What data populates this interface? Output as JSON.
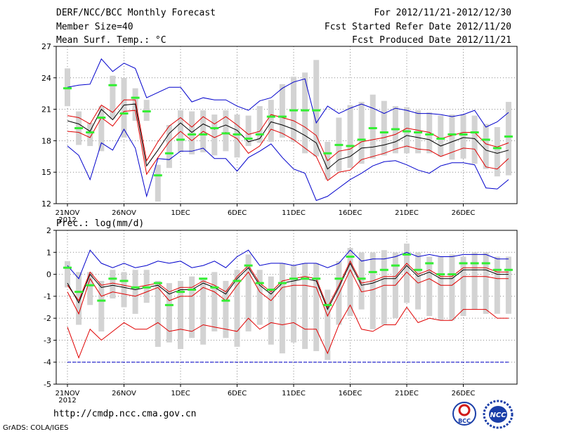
{
  "header": {
    "title": "DERF/NCC/BCC Monthly Forecast",
    "member_size": "Member Size=40",
    "variable": "Mean Surf. Temp.: °C",
    "period": "For 2012/11/21-2012/12/30",
    "start_date": "Fcst Started Refer Date 2012/11/20",
    "produced_date": "Fcst Produced Date 2012/11/21"
  },
  "footer": {
    "url": "http://cmdp.ncc.cma.gov.cn",
    "credit": "GrADS: COLA/IGES",
    "logo_left_text": "BCC",
    "logo_right_text": "NCC"
  },
  "colors": {
    "box": "#d3d3d3",
    "mean": "#000000",
    "red": "#e00000",
    "blue": "#0000cc",
    "green": "#33ee33",
    "grid": "#888888"
  },
  "chart_data": [
    {
      "type": "ensemble box plot",
      "ylabel": "Mean Surf. Temp.: °C",
      "ylim": [
        12,
        27
      ],
      "yticks": [
        12,
        15,
        18,
        21,
        24,
        27
      ],
      "xticks": [
        {
          "day": 0,
          "label": "21NOV",
          "sub": "2012"
        },
        {
          "day": 5,
          "label": "26NOV"
        },
        {
          "day": 10,
          "label": "1DEC"
        },
        {
          "day": 15,
          "label": "6DEC"
        },
        {
          "day": 20,
          "label": "11DEC"
        },
        {
          "day": 25,
          "label": "16DEC"
        },
        {
          "day": 30,
          "label": "21DEC"
        },
        {
          "day": 35,
          "label": "26DEC"
        }
      ],
      "grid": true,
      "box_low": [
        21.3,
        17.6,
        17.5,
        17.0,
        20.1,
        18.3,
        19.9,
        19.9,
        12.2,
        15.4,
        16.9,
        16.7,
        16.9,
        16.6,
        17.0,
        16.4,
        17.5,
        17.8,
        17.9,
        18.3,
        17.9,
        16.8,
        16.5,
        14.3,
        15.1,
        15.4,
        15.8,
        16.3,
        16.6,
        16.8,
        16.8,
        16.8,
        16.8,
        16.5,
        16.2,
        16.3,
        15.8,
        15.3,
        14.6,
        14.7
      ],
      "box_high": [
        24.9,
        20.8,
        19.7,
        21.3,
        24.2,
        24.0,
        23.0,
        21.9,
        15.7,
        19.5,
        20.9,
        20.8,
        20.9,
        20.5,
        20.9,
        20.5,
        20.4,
        21.3,
        21.9,
        23.4,
        24.1,
        24.5,
        25.7,
        17.9,
        20.2,
        21.4,
        21.7,
        22.4,
        21.8,
        21.3,
        21.2,
        20.9,
        20.7,
        20.4,
        20.5,
        20.5,
        20.4,
        19.6,
        19.3,
        21.7
      ],
      "mean": [
        19.9,
        19.6,
        18.9,
        21.0,
        20.0,
        21.4,
        21.5,
        15.6,
        17.1,
        18.7,
        19.7,
        18.8,
        19.6,
        19.1,
        19.5,
        19.0,
        17.9,
        18.2,
        19.8,
        19.5,
        19.1,
        18.5,
        17.8,
        15.3,
        16.2,
        16.5,
        17.3,
        17.4,
        17.6,
        17.9,
        18.5,
        18.3,
        18.1,
        17.5,
        17.9,
        18.3,
        18.2,
        17.1,
        16.8,
        17.1
      ],
      "red_upper": [
        20.4,
        20.2,
        19.6,
        21.4,
        20.7,
        21.9,
        21.9,
        16.1,
        17.9,
        19.4,
        20.2,
        19.3,
        20.3,
        19.6,
        20.3,
        19.5,
        18.6,
        18.9,
        20.5,
        20.2,
        19.9,
        19.3,
        18.5,
        16.1,
        17.0,
        17.2,
        17.9,
        18.1,
        18.3,
        18.6,
        19.2,
        19.0,
        18.8,
        18.2,
        18.5,
        18.8,
        18.8,
        17.7,
        17.4,
        17.8
      ],
      "red_lower": [
        18.9,
        18.8,
        18.3,
        20.2,
        19.4,
        20.8,
        20.9,
        14.8,
        16.4,
        17.9,
        18.9,
        18.0,
        18.9,
        18.3,
        18.8,
        18.2,
        16.8,
        17.5,
        19.1,
        18.7,
        18.1,
        17.3,
        16.5,
        14.2,
        15.0,
        15.2,
        16.2,
        16.5,
        16.8,
        17.2,
        17.5,
        17.2,
        17.1,
        16.5,
        16.9,
        17.3,
        17.2,
        15.5,
        15.3,
        16.3
      ],
      "blue_upper": [
        23.1,
        23.3,
        23.4,
        25.8,
        24.6,
        25.4,
        24.9,
        22.1,
        22.6,
        23.1,
        23.1,
        21.7,
        22.1,
        21.9,
        21.9,
        21.3,
        20.9,
        21.8,
        22.1,
        23.0,
        23.6,
        23.9,
        19.7,
        21.3,
        20.6,
        21.1,
        21.5,
        21.1,
        20.6,
        21.1,
        20.9,
        20.6,
        20.6,
        20.5,
        20.3,
        20.5,
        20.9,
        19.3,
        19.8,
        20.7
      ],
      "blue_lower": [
        17.5,
        16.6,
        14.3,
        17.8,
        17.1,
        19.1,
        17.3,
        12.7,
        16.3,
        16.2,
        17.0,
        17.0,
        17.3,
        16.3,
        16.3,
        15.1,
        16.4,
        17.0,
        17.7,
        16.4,
        15.3,
        14.9,
        12.3,
        12.7,
        13.5,
        14.3,
        14.9,
        15.6,
        16.0,
        16.1,
        15.7,
        15.2,
        14.9,
        15.6,
        15.9,
        15.9,
        15.7,
        13.5,
        13.4,
        14.3
      ],
      "green": [
        23.0,
        19.2,
        18.8,
        20.2,
        23.3,
        20.6,
        22.1,
        20.8,
        14.7,
        16.8,
        18.1,
        18.6,
        18.6,
        19.2,
        18.7,
        18.6,
        18.2,
        18.6,
        20.3,
        20.3,
        20.9,
        20.9,
        20.9,
        16.8,
        17.6,
        17.5,
        18.1,
        19.2,
        18.8,
        19.1,
        18.9,
        18.8,
        18.6,
        18.2,
        18.6,
        18.6,
        18.8,
        18.1,
        17.3,
        18.4
      ]
    },
    {
      "type": "ensemble box plot",
      "ylabel": "Prec.: log(mm/d)",
      "ylim": [
        -5,
        2
      ],
      "yticks": [
        -5,
        -4,
        -3,
        -2,
        -1,
        0,
        1,
        2
      ],
      "xticks": [
        {
          "day": 0,
          "label": "21NOV",
          "sub": "2012"
        },
        {
          "day": 5,
          "label": "26NOV"
        },
        {
          "day": 10,
          "label": "1DEC"
        },
        {
          "day": 15,
          "label": "6DEC"
        },
        {
          "day": 20,
          "label": "11DEC"
        },
        {
          "day": 25,
          "label": "16DEC"
        },
        {
          "day": 30,
          "label": "21DEC"
        },
        {
          "day": 35,
          "label": "26DEC"
        }
      ],
      "grid": true,
      "floor": -4,
      "box_low": [
        -0.6,
        -2.3,
        -1.4,
        -2.6,
        -1.1,
        -1.5,
        -1.8,
        -1.3,
        -3.3,
        -3.1,
        -3.4,
        -2.9,
        -3.2,
        -2.6,
        -2.9,
        -3.3,
        -2.6,
        -2.3,
        -3.2,
        -3.6,
        -3.1,
        -3.4,
        -3.5,
        -3.9,
        -2.3,
        -1.9,
        -1.6,
        -2.5,
        -2.3,
        -2.0,
        -1.3,
        -1.6,
        -1.9,
        -2.1,
        -2.1,
        -1.9,
        -1.6,
        -1.8,
        -1.8,
        -1.8
      ],
      "box_high": [
        0.6,
        0.1,
        0.1,
        -0.3,
        0.2,
        0.1,
        0.2,
        0.2,
        -0.3,
        -0.4,
        -0.3,
        -0.1,
        -0.2,
        0.1,
        -0.3,
        0.2,
        0.9,
        0.2,
        -0.1,
        0.5,
        0.4,
        0.5,
        0.5,
        -0.7,
        0.6,
        1.2,
        1.0,
        1.0,
        1.1,
        1.0,
        1.4,
        1.0,
        0.8,
        0.8,
        0.9,
        0.8,
        1.0,
        1.0,
        0.8,
        0.8
      ],
      "mean": [
        -0.4,
        -1.3,
        0.0,
        -0.6,
        -0.5,
        -0.6,
        -0.7,
        -0.6,
        -0.5,
        -0.9,
        -0.7,
        -0.7,
        -0.4,
        -0.6,
        -0.9,
        -0.2,
        0.3,
        -0.5,
        -0.9,
        -0.4,
        -0.3,
        -0.2,
        -0.3,
        -1.6,
        -0.6,
        0.5,
        -0.5,
        -0.4,
        -0.2,
        -0.2,
        0.4,
        -0.1,
        0.1,
        -0.2,
        -0.2,
        0.2,
        0.2,
        0.2,
        0.0,
        0.0
      ],
      "red_upper": [
        -0.5,
        -1.2,
        0.1,
        -0.5,
        -0.4,
        -0.5,
        -0.6,
        -0.5,
        -0.4,
        -0.8,
        -0.6,
        -0.6,
        -0.3,
        -0.5,
        -0.8,
        -0.1,
        0.4,
        -0.4,
        -0.8,
        -0.3,
        -0.2,
        -0.1,
        -0.2,
        -1.5,
        -0.5,
        0.6,
        -0.4,
        -0.3,
        -0.1,
        -0.1,
        0.5,
        0.0,
        0.2,
        -0.1,
        -0.1,
        0.3,
        0.3,
        0.3,
        0.1,
        0.1
      ],
      "red_lower": [
        -0.8,
        -1.8,
        -0.2,
        -1.0,
        -0.8,
        -0.9,
        -1.0,
        -0.8,
        -0.6,
        -1.2,
        -1.0,
        -1.0,
        -0.6,
        -0.8,
        -1.2,
        -0.5,
        0.1,
        -0.8,
        -1.2,
        -0.6,
        -0.5,
        -0.5,
        -0.6,
        -1.9,
        -0.9,
        0.2,
        -0.8,
        -0.7,
        -0.5,
        -0.5,
        0.1,
        -0.4,
        -0.2,
        -0.5,
        -0.5,
        -0.1,
        -0.1,
        -0.1,
        -0.2,
        -0.2
      ],
      "red_lowest": [
        -2.4,
        -3.8,
        -2.5,
        -3.0,
        -2.6,
        -2.2,
        -2.5,
        -2.5,
        -2.2,
        -2.6,
        -2.5,
        -2.6,
        -2.3,
        -2.4,
        -2.5,
        -2.6,
        -2.0,
        -2.5,
        -2.2,
        -2.3,
        -2.2,
        -2.5,
        -2.5,
        -3.6,
        -2.3,
        -1.4,
        -2.5,
        -2.6,
        -2.3,
        -2.3,
        -1.5,
        -2.2,
        -2.0,
        -2.1,
        -2.1,
        -1.6,
        -1.6,
        -1.6,
        -2.0,
        -2.0
      ],
      "blue_upper": [
        0.4,
        -0.2,
        1.1,
        0.5,
        0.3,
        0.5,
        0.3,
        0.4,
        0.6,
        0.5,
        0.6,
        0.3,
        0.4,
        0.6,
        0.3,
        0.8,
        1.1,
        0.4,
        0.5,
        0.5,
        0.4,
        0.5,
        0.5,
        0.3,
        0.5,
        1.1,
        0.6,
        0.7,
        0.7,
        0.8,
        1.0,
        0.8,
        0.9,
        0.8,
        0.8,
        0.9,
        0.9,
        0.9,
        0.7,
        0.7
      ],
      "green": [
        0.3,
        -0.8,
        -0.5,
        -1.2,
        -0.2,
        -0.3,
        -0.6,
        -0.6,
        -0.4,
        -1.4,
        -0.8,
        -0.7,
        -0.2,
        -0.6,
        -1.2,
        -0.3,
        0.4,
        -0.4,
        -0.7,
        -0.4,
        -0.2,
        -0.2,
        -0.2,
        -1.4,
        -0.2,
        0.8,
        -0.2,
        0.1,
        0.2,
        0.4,
        0.9,
        0.2,
        0.5,
        0.0,
        0.0,
        0.5,
        0.5,
        0.5,
        0.2,
        0.2
      ]
    }
  ]
}
